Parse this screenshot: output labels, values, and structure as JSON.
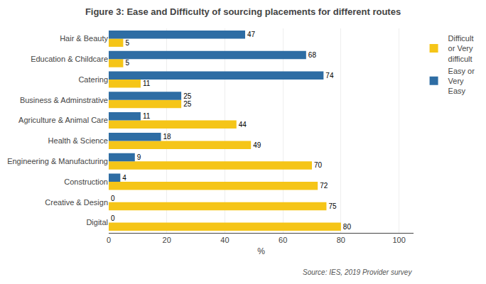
{
  "chart_data": {
    "type": "bar",
    "orientation": "horizontal",
    "title": "Figure 3: Ease and Difficulty of sourcing placements for different routes",
    "categories": [
      "Digital",
      "Creative & Design",
      "Construction",
      "Engineering & Manufacturing",
      "Health & Science",
      "Agriculture & Animal Care",
      "Business & Adminstrative",
      "Catering",
      "Education & Childcare",
      "Hair & Beauty"
    ],
    "series": [
      {
        "name": "Difficult\nor Very\ndifficult",
        "color": "#F5C518",
        "values": [
          80,
          75,
          72,
          70,
          49,
          44,
          25,
          11,
          5,
          5
        ]
      },
      {
        "name": "Easy or\nVery\nEasy",
        "color": "#2E6DA4",
        "values": [
          0,
          0,
          4,
          9,
          18,
          11,
          25,
          74,
          68,
          47
        ]
      }
    ],
    "xlabel": "%",
    "xlim": [
      0,
      105
    ],
    "xticks": [
      0,
      20,
      40,
      60,
      80,
      100
    ],
    "grid": true,
    "data_labels": true,
    "legend": "upper right",
    "annotations": [
      "Source: IES, 2019 Provider survey"
    ]
  }
}
